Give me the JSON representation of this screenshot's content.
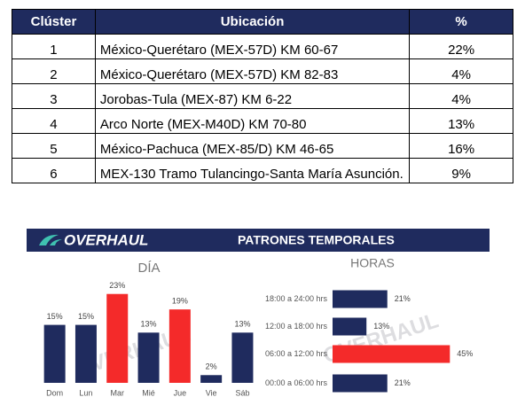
{
  "table": {
    "header": [
      "Clúster",
      "Ubicación",
      "%"
    ],
    "rows": [
      [
        "1",
        "México-Querétaro (MEX-57D) KM 60-67",
        "22%"
      ],
      [
        "2",
        "México-Querétaro (MEX-57D) KM 82-83",
        "4%"
      ],
      [
        "3",
        "Jorobas-Tula (MEX-87) KM 6-22",
        "4%"
      ],
      [
        "4",
        "Arco Norte (MEX-M40D) KM 70-80",
        "13%"
      ],
      [
        "5",
        "México-Pachuca (MEX-85/D) KM 46-65",
        "16%"
      ],
      [
        "6",
        "MEX-130 Tramo Tulancingo-Santa María Asunción.",
        "9%"
      ]
    ]
  },
  "banner": {
    "logo": "OVERHAUL",
    "title": "PATRONES TEMPORALES",
    "watermark": "OVERHAUL"
  },
  "chart_data": [
    {
      "type": "bar",
      "title": "DÍA",
      "categories": [
        "Dom",
        "Lun",
        "Mar",
        "Mié",
        "Jue",
        "Vie",
        "Sáb"
      ],
      "values": [
        15,
        15,
        23,
        13,
        19,
        2,
        13
      ],
      "value_labels": [
        "15%",
        "15%",
        "23%",
        "13%",
        "19%",
        "2%",
        "13%"
      ],
      "colors": [
        "#1f2b5e",
        "#1f2b5e",
        "#f42a2a",
        "#1f2b5e",
        "#f42a2a",
        "#1f2b5e",
        "#1f2b5e"
      ],
      "ylim": [
        0,
        25
      ]
    },
    {
      "type": "hbar",
      "title": "HORAS",
      "categories": [
        "18:00 a 24:00 hrs",
        "12:00 a 18:00 hrs",
        "06:00 a 12:00 hrs",
        "00:00 a 06:00 hrs"
      ],
      "values": [
        21,
        13,
        45,
        21
      ],
      "value_labels": [
        "21%",
        "13%",
        "45%",
        "21%"
      ],
      "colors": [
        "#1f2b5e",
        "#1f2b5e",
        "#f42a2a",
        "#1f2b5e"
      ],
      "xlim": [
        0,
        50
      ]
    }
  ]
}
